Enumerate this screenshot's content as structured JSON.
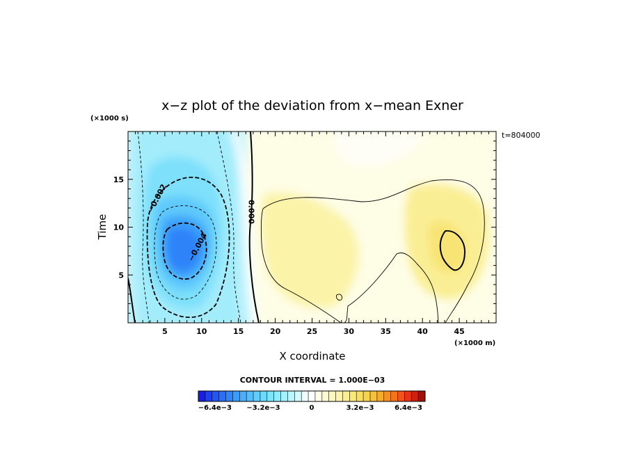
{
  "chart_data": {
    "type": "contour",
    "title": "x−z plot of the deviation from x−mean Exner",
    "xlabel": "X coordinate",
    "ylabel": "Time",
    "x_unit": "(×1000 m)",
    "y_unit": "(×1000 s)",
    "timestamp": "t=804000",
    "xlim": [
      0,
      50
    ],
    "ylim": [
      0,
      20
    ],
    "x_ticks": [
      5,
      10,
      15,
      20,
      25,
      30,
      35,
      40,
      45
    ],
    "y_ticks": [
      5,
      10,
      15
    ],
    "contour_interval_label": "CONTOUR INTERVAL = 1.000E−03",
    "contour_labels": [
      {
        "text": "−0.002",
        "x": 4.0,
        "y": 13.0,
        "angle": -62
      },
      {
        "text": "−0.004",
        "x": 9.5,
        "y": 7.9,
        "angle": -62
      },
      {
        "text": "0.000",
        "x": 16.7,
        "y": 11.6,
        "angle": 90
      }
    ],
    "features": [
      {
        "name": "negative minimum",
        "x": 7.5,
        "y": 7.8,
        "value": -0.0055
      },
      {
        "name": "positive maximum",
        "x": 44.5,
        "y": 7.8,
        "value": 0.0035
      }
    ],
    "colorbar": {
      "min": -0.0075,
      "max": 0.0075,
      "ticks": [
        "−6.4e−3",
        "−3.2e−3",
        "0",
        "3.2e−3",
        "6.4e−3"
      ],
      "tick_values": [
        -0.0064,
        -0.0032,
        0,
        0.0032,
        0.0064
      ],
      "colors": [
        "#1a1ee0",
        "#1f3ff2",
        "#2455f6",
        "#2a6ef8",
        "#2e86fa",
        "#3a9cfc",
        "#4aaefc",
        "#55bdfd",
        "#60cdfd",
        "#6ddafd",
        "#7de4fd",
        "#8febfd",
        "#a4f1fd",
        "#bdf5fd",
        "#d6f9fe",
        "#eefcfe",
        "#fefefe",
        "#fefde6",
        "#fdfad0",
        "#fcf7bc",
        "#fbf3a6",
        "#faee8e",
        "#f9e877",
        "#f8df62",
        "#f7d24c",
        "#f6c13b",
        "#f5ab2e",
        "#f49124",
        "#f3741d",
        "#f05418",
        "#e83314",
        "#d01f10",
        "#a01008"
      ]
    }
  }
}
